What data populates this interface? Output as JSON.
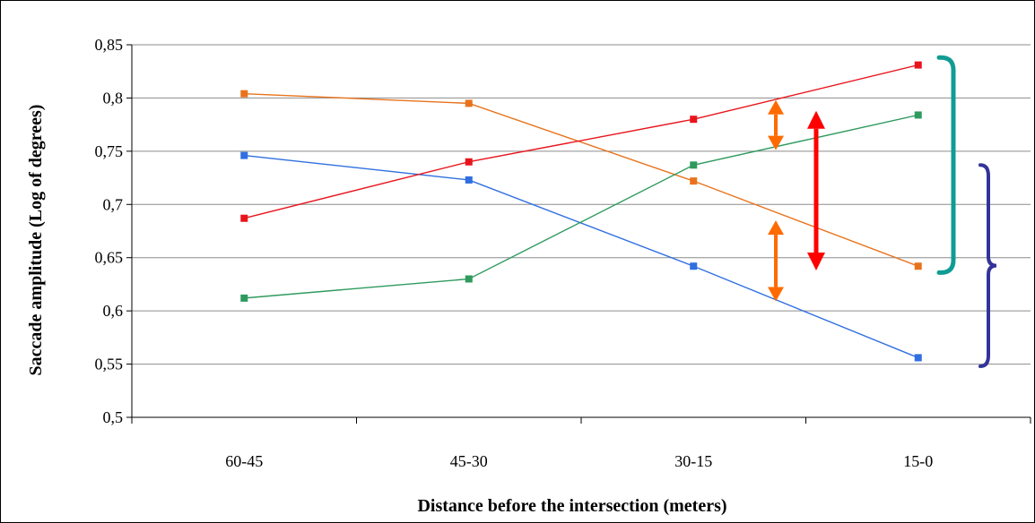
{
  "chart_data": {
    "type": "line",
    "title": "",
    "xlabel": "Distance before the intersection (meters)",
    "ylabel": "Saccade amplitude (Log of degrees)",
    "categories": [
      "60-45",
      "45-30",
      "30-15",
      "15-0"
    ],
    "ylim": [
      0.5,
      0.85
    ],
    "yticks": [
      "0,5",
      "0,55",
      "0,6",
      "0,65",
      "0,7",
      "0,75",
      "0,8",
      "0,85"
    ],
    "grid": true,
    "legend": "none",
    "series": [
      {
        "color": "#e8731c",
        "values": [
          0.804,
          0.795,
          0.722,
          0.642
        ]
      },
      {
        "color": "#2f6fe0",
        "values": [
          0.746,
          0.723,
          0.642,
          0.556
        ]
      },
      {
        "color": "#e8141c",
        "values": [
          0.687,
          0.74,
          0.78,
          0.831
        ]
      },
      {
        "color": "#2e9a5e",
        "values": [
          0.612,
          0.63,
          0.737,
          0.784
        ]
      }
    ],
    "annotations": {
      "orange_arrows_color": "#ff6a00",
      "red_arrow_color": "#ff0000",
      "teal_bracket_color": "#109c93",
      "purple_brace_color": "#333399"
    }
  }
}
